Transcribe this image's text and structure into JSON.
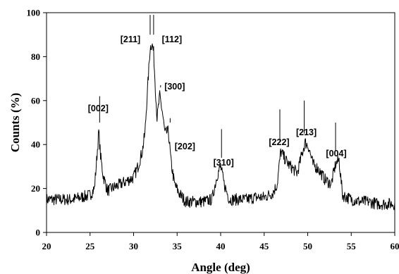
{
  "chart_data": {
    "type": "line",
    "title": "",
    "xlabel": "Angle (deg)",
    "ylabel": "Counts (%)",
    "xlim": [
      20,
      60
    ],
    "ylim": [
      0,
      100
    ],
    "xticks": [
      "20",
      "25",
      "30",
      "35",
      "40",
      "45",
      "50",
      "55",
      "60"
    ],
    "yticks": [
      "0",
      "20",
      "40",
      "60",
      "80",
      "100"
    ],
    "grid": false,
    "legend": "none",
    "series": [
      {
        "color": "#000000",
        "x": [
          20,
          21,
          22,
          23,
          24,
          25,
          25.5,
          25.8,
          26.0,
          26.2,
          26.5,
          27,
          28,
          29,
          29.5,
          30,
          30.5,
          31,
          31.3,
          31.6,
          31.9,
          32.1,
          32.3,
          32.5,
          32.7,
          33.0,
          33.3,
          33.6,
          34.0,
          34.3,
          34.7,
          35.2,
          36,
          37,
          38,
          39,
          39.6,
          40.0,
          40.4,
          41,
          42,
          43,
          44,
          45,
          46,
          46.5,
          46.9,
          47.3,
          47.8,
          48.3,
          48.8,
          49.3,
          49.7,
          50.1,
          50.6,
          51.2,
          52,
          52.7,
          53.2,
          53.6,
          54,
          55,
          56,
          57,
          58,
          59,
          60
        ],
        "y": [
          15,
          15,
          15,
          15,
          16,
          17,
          20,
          35,
          46,
          35,
          26,
          19,
          21,
          23,
          24,
          25,
          30,
          37,
          45,
          65,
          84,
          86,
          82,
          66,
          52,
          62,
          55,
          45,
          46,
          32,
          22,
          18,
          14,
          14,
          14,
          15,
          26,
          30,
          22,
          15,
          15,
          15,
          16,
          16,
          18,
          22,
          37,
          34,
          31,
          29,
          27,
          35,
          41,
          39,
          31,
          29,
          24,
          22,
          31,
          33,
          17,
          15,
          14,
          14,
          13,
          13,
          13
        ]
      }
    ],
    "annotations": [
      {
        "text": "[002]",
        "x": 26.1,
        "y": 46
      },
      {
        "text": "[211]",
        "x": 31.9,
        "y": 86
      },
      {
        "text": "[112]",
        "x": 32.3,
        "y": 86
      },
      {
        "text": "[300]",
        "x": 33.1,
        "y": 62
      },
      {
        "text": "[202]",
        "x": 34.2,
        "y": 46
      },
      {
        "text": "[310]",
        "x": 40.1,
        "y": 30
      },
      {
        "text": "[222]",
        "x": 46.8,
        "y": 37
      },
      {
        "text": "[213]",
        "x": 49.6,
        "y": 41
      },
      {
        "text": "[004]",
        "x": 53.2,
        "y": 33
      }
    ]
  }
}
